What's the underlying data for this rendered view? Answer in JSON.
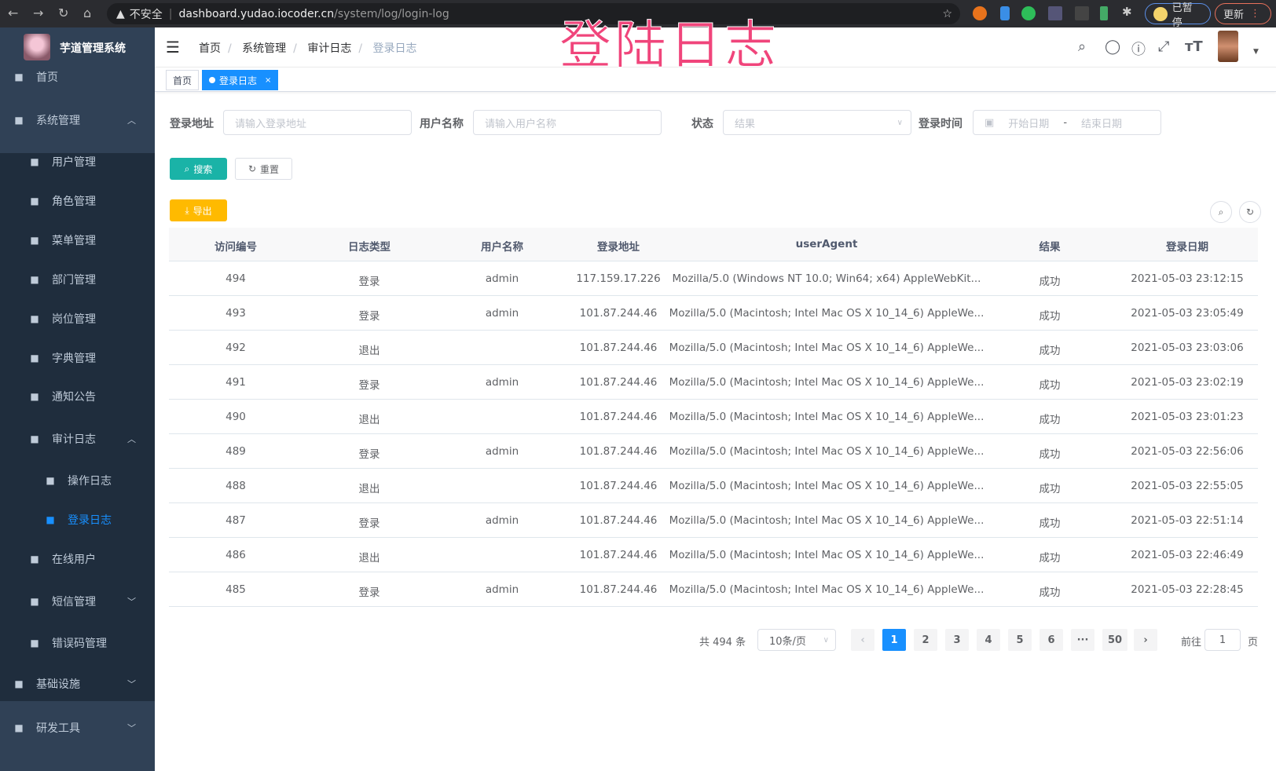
{
  "browser": {
    "security": "不安全",
    "host": "dashboard.yudao.iocoder.cn",
    "path": "/system/log/login-log",
    "paused": "已暂停",
    "update": "更新"
  },
  "overlay_title": "登陆日志",
  "sidebar": {
    "brand": "芋道管理系统",
    "items": [
      {
        "label": "首页",
        "icon": "dashboard-icon",
        "level": 0
      },
      {
        "label": "系统管理",
        "icon": "gear-icon",
        "level": 0,
        "arrow": "up"
      },
      {
        "label": "用户管理",
        "icon": "user-icon",
        "level": 1
      },
      {
        "label": "角色管理",
        "icon": "peoples-icon",
        "level": 1
      },
      {
        "label": "菜单管理",
        "icon": "tree-table-icon",
        "level": 1
      },
      {
        "label": "部门管理",
        "icon": "tree-icon",
        "level": 1
      },
      {
        "label": "岗位管理",
        "icon": "post-icon",
        "level": 1
      },
      {
        "label": "字典管理",
        "icon": "dict-icon",
        "level": 1
      },
      {
        "label": "通知公告",
        "icon": "message-icon",
        "level": 1
      },
      {
        "label": "审计日志",
        "icon": "log-icon",
        "level": 1,
        "arrow": "up"
      },
      {
        "label": "操作日志",
        "icon": "form-icon",
        "level": 2
      },
      {
        "label": "登录日志",
        "icon": "logininfor-icon",
        "level": 2,
        "active": true
      },
      {
        "label": "在线用户",
        "icon": "online-icon",
        "level": 1
      },
      {
        "label": "短信管理",
        "icon": "validcode-icon",
        "level": 1,
        "arrow": "down"
      },
      {
        "label": "错误码管理",
        "icon": "code-icon",
        "level": 1
      },
      {
        "label": "基础设施",
        "icon": "monitor-icon",
        "level": 0,
        "arrow": "down"
      },
      {
        "label": "研发工具",
        "icon": "tool-icon",
        "level": 0,
        "arrow": "down"
      }
    ]
  },
  "breadcrumb": [
    "首页",
    "系统管理",
    "审计日志",
    "登录日志"
  ],
  "tags": [
    {
      "label": "首页"
    },
    {
      "label": "登录日志",
      "active": true
    }
  ],
  "filters": {
    "address": {
      "label": "登录地址",
      "placeholder": "请输入登录地址"
    },
    "username": {
      "label": "用户名称",
      "placeholder": "请输入用户名称"
    },
    "status": {
      "label": "状态",
      "placeholder": "结果"
    },
    "time": {
      "label": "登录时间",
      "start": "开始日期",
      "sep": "-",
      "end": "结束日期"
    }
  },
  "buttons": {
    "search": "搜索",
    "reset": "重置",
    "export": "导出"
  },
  "table": {
    "columns": [
      "访问编号",
      "日志类型",
      "用户名称",
      "登录地址",
      "userAgent",
      "结果",
      "登录日期"
    ],
    "rows": [
      [
        "494",
        "登录",
        "admin",
        "117.159.17.226",
        "Mozilla/5.0 (Windows NT 10.0; Win64; x64) AppleWebKit...",
        "成功",
        "2021-05-03 23:12:15"
      ],
      [
        "493",
        "登录",
        "admin",
        "101.87.244.46",
        "Mozilla/5.0 (Macintosh; Intel Mac OS X 10_14_6) AppleWe...",
        "成功",
        "2021-05-03 23:05:49"
      ],
      [
        "492",
        "退出",
        "",
        "101.87.244.46",
        "Mozilla/5.0 (Macintosh; Intel Mac OS X 10_14_6) AppleWe...",
        "成功",
        "2021-05-03 23:03:06"
      ],
      [
        "491",
        "登录",
        "admin",
        "101.87.244.46",
        "Mozilla/5.0 (Macintosh; Intel Mac OS X 10_14_6) AppleWe...",
        "成功",
        "2021-05-03 23:02:19"
      ],
      [
        "490",
        "退出",
        "",
        "101.87.244.46",
        "Mozilla/5.0 (Macintosh; Intel Mac OS X 10_14_6) AppleWe...",
        "成功",
        "2021-05-03 23:01:23"
      ],
      [
        "489",
        "登录",
        "admin",
        "101.87.244.46",
        "Mozilla/5.0 (Macintosh; Intel Mac OS X 10_14_6) AppleWe...",
        "成功",
        "2021-05-03 22:56:06"
      ],
      [
        "488",
        "退出",
        "",
        "101.87.244.46",
        "Mozilla/5.0 (Macintosh; Intel Mac OS X 10_14_6) AppleWe...",
        "成功",
        "2021-05-03 22:55:05"
      ],
      [
        "487",
        "登录",
        "admin",
        "101.87.244.46",
        "Mozilla/5.0 (Macintosh; Intel Mac OS X 10_14_6) AppleWe...",
        "成功",
        "2021-05-03 22:51:14"
      ],
      [
        "486",
        "退出",
        "",
        "101.87.244.46",
        "Mozilla/5.0 (Macintosh; Intel Mac OS X 10_14_6) AppleWe...",
        "成功",
        "2021-05-03 22:46:49"
      ],
      [
        "485",
        "登录",
        "admin",
        "101.87.244.46",
        "Mozilla/5.0 (Macintosh; Intel Mac OS X 10_14_6) AppleWe...",
        "成功",
        "2021-05-03 22:28:45"
      ]
    ]
  },
  "pagination": {
    "total": "共 494 条",
    "page_size": "10条/页",
    "pages": [
      "1",
      "2",
      "3",
      "4",
      "5",
      "6",
      "···",
      "50"
    ],
    "current": "1",
    "goto_label": "前往",
    "goto_value": "1",
    "goto_suffix": "页"
  },
  "colors": {
    "accent": "#1890ff",
    "search": "#1ab3a7",
    "export": "#ffba00",
    "sidebar": "#304156",
    "overlay": "#f0457b"
  }
}
